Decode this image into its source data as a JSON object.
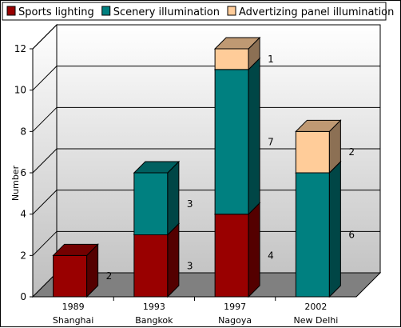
{
  "chart_data": {
    "type": "bar",
    "stacked": true,
    "three_d": true,
    "ylabel": "Number",
    "ylim": [
      0,
      12
    ],
    "yticks": [
      0,
      2,
      4,
      6,
      8,
      10,
      12
    ],
    "grid": true,
    "legend_position": "top",
    "categories": [
      {
        "year": "1989",
        "city": "Shanghai"
      },
      {
        "year": "1993",
        "city": "Bangkok"
      },
      {
        "year": "1997",
        "city": "Nagoya"
      },
      {
        "year": "2002",
        "city": "New Delhi"
      }
    ],
    "series": [
      {
        "name": "Sports lighting",
        "color": "#990000",
        "values": [
          2,
          3,
          4,
          0
        ]
      },
      {
        "name": "Scenery illumination",
        "color": "#008080",
        "values": [
          0,
          3,
          7,
          6
        ]
      },
      {
        "name": "Advertizing panel illumination",
        "color": "#ffcc99",
        "values": [
          0,
          0,
          1,
          2
        ]
      }
    ]
  }
}
